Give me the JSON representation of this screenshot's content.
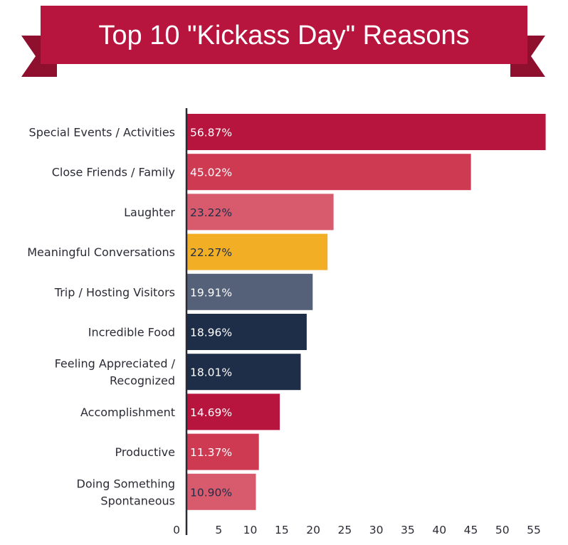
{
  "colors": {
    "banner": "#b8153e",
    "banner_tail": "#8f0f2f",
    "crimson": "#b8153e",
    "rose": "#cf3a53",
    "light_rose": "#d85b6d",
    "gold": "#f2ae24",
    "slate": "#546178",
    "navy": "#1e2d48",
    "axis": "#2b2b36"
  },
  "chart_data": {
    "type": "bar",
    "orientation": "horizontal",
    "title": "Top 10 \"Kickass Day\" Reasons",
    "xlabel": "",
    "ylabel": "",
    "xlim": [
      0,
      58
    ],
    "ticks": [
      "0",
      "5",
      "10",
      "15",
      "20",
      "25",
      "30",
      "35",
      "40",
      "45",
      "50",
      "55"
    ],
    "categories": [
      [
        "Special Events / Activities"
      ],
      [
        "Close Friends / Family"
      ],
      [
        "Laughter"
      ],
      [
        "Meaningful Conversations"
      ],
      [
        "Trip / Hosting Visitors"
      ],
      [
        "Incredible Food"
      ],
      [
        "Feeling Appreciated /",
        "Recognized"
      ],
      [
        "Accomplishment"
      ],
      [
        "Productive"
      ],
      [
        "Doing Something",
        "Spontaneous"
      ]
    ],
    "values": [
      56.87,
      45.02,
      23.22,
      22.27,
      19.91,
      18.96,
      18.01,
      14.69,
      11.37,
      10.9
    ],
    "value_labels": [
      "56.87%",
      "45.02%",
      "23.22%",
      "22.27%",
      "19.91%",
      "18.96%",
      "18.01%",
      "14.69%",
      "11.37%",
      "10.90%"
    ],
    "bar_colors": [
      "#b8153e",
      "#cf3a53",
      "#d85b6d",
      "#f2ae24",
      "#546178",
      "#1e2d48",
      "#1e2d48",
      "#b8153e",
      "#cf3a53",
      "#d85b6d"
    ],
    "label_colors": [
      "#ffffff",
      "#ffffff",
      "#1e2d48",
      "#1e2d48",
      "#ffffff",
      "#ffffff",
      "#ffffff",
      "#ffffff",
      "#ffffff",
      "#1e2d48"
    ],
    "grid": false,
    "legend": "none"
  }
}
